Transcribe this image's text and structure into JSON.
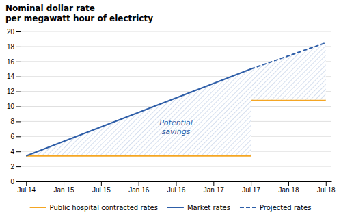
{
  "chart_data": {
    "type": "line",
    "title": "Nominal dollar rate",
    "subtitle": "per megawatt hour of electricty",
    "categories": [
      "Jul 14",
      "Jan 15",
      "Jul 15",
      "Jan 16",
      "Jul 16",
      "Jan 17",
      "Jul 17",
      "Jan 18",
      "Jul 18"
    ],
    "series": [
      {
        "name": "Public hospital contracted rates",
        "color": "#f5a623",
        "line_style": "solid",
        "x": [
          "Jul 14",
          "Jul 17",
          null,
          "Jul 17",
          "Jul 18"
        ],
        "values": [
          3.4,
          3.4,
          null,
          10.8,
          10.8
        ]
      },
      {
        "name": "Market rates",
        "color": "#2e5ea8",
        "line_style": "solid",
        "x": [
          "Jul 14",
          "Jul 17"
        ],
        "values": [
          3.4,
          15.0
        ]
      },
      {
        "name": "Projected rates",
        "color": "#2e5ea8",
        "line_style": "dashed",
        "x": [
          "Jul 17",
          "Jul 18"
        ],
        "values": [
          15.0,
          18.5
        ]
      }
    ],
    "annotations": [
      {
        "text": "Potential\nsavings"
      }
    ],
    "ylim": [
      0,
      20
    ],
    "yticks": [
      0,
      2,
      4,
      6,
      8,
      10,
      12,
      14,
      16,
      18,
      20
    ],
    "grid": true,
    "legend": "bottom"
  }
}
